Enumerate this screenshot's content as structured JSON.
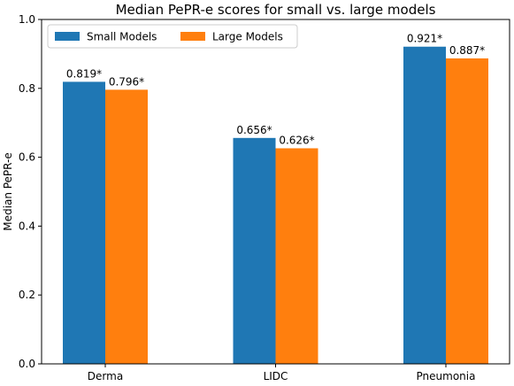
{
  "chart_data": {
    "type": "bar",
    "title": "Median PePR-e scores for small vs. large models",
    "xlabel": "",
    "ylabel": "Median PePR-e",
    "categories": [
      "Derma",
      "LIDC",
      "Pneumonia"
    ],
    "ylim": [
      0.0,
      1.0
    ],
    "yticks": [
      "0.0",
      "0.2",
      "0.4",
      "0.6",
      "0.8",
      "1.0"
    ],
    "legend_position": "top-left",
    "grid": false,
    "series": [
      {
        "name": "Small Models",
        "color": "#1f77b4",
        "values": [
          0.819,
          0.656,
          0.921
        ],
        "labels": [
          "0.819*",
          "0.656*",
          "0.921*"
        ]
      },
      {
        "name": "Large Models",
        "color": "#ff7f0e",
        "values": [
          0.796,
          0.626,
          0.887
        ],
        "labels": [
          "0.796*",
          "0.626*",
          "0.887*"
        ]
      }
    ]
  }
}
